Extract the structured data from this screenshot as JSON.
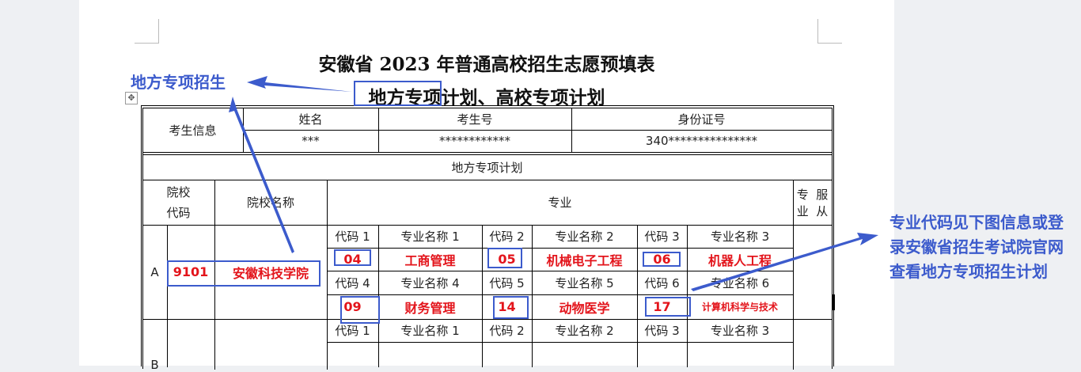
{
  "title": "安徽省 2023 年普通高校招生志愿预填表",
  "subtitle": "地方专项计划、高校专项计划",
  "student": {
    "label": "考生信息",
    "name_h": "姓名",
    "id_h": "考生号",
    "card_h": "身份证号",
    "name": "***",
    "id": "************",
    "card": "340***************"
  },
  "plan_title": "地方专项计划",
  "headers": {
    "code": "院校代码",
    "code1": "院校",
    "code2": "代码",
    "name": "院校名称",
    "major": "专业",
    "obey1": "专业",
    "obey2": "服从"
  },
  "rows": [
    {
      "letter": "A",
      "school_code": "9101",
      "school_name": "安徽科技学院",
      "labels": [
        "代码 1",
        "专业名称 1",
        "代码 2",
        "专业名称 2",
        "代码 3",
        "专业名称 3",
        "代码 4",
        "专业名称 4",
        "代码 5",
        "专业名称 5",
        "代码 6",
        "专业名称 6"
      ],
      "majors": [
        {
          "code": "04",
          "name": "工商管理"
        },
        {
          "code": "05",
          "name": "机械电子工程"
        },
        {
          "code": "06",
          "name": "机器人工程"
        },
        {
          "code": "09",
          "name": "财务管理"
        },
        {
          "code": "14",
          "name": "动物医学"
        },
        {
          "code": "17",
          "name": "计算机科学与技术"
        }
      ]
    },
    {
      "letter": "B",
      "labels": [
        "代码 1",
        "专业名称 1",
        "代码 2",
        "专业名称 2",
        "代码 3",
        "专业名称 3"
      ]
    }
  ],
  "annotations": {
    "left": "地方专项招生",
    "right": "专业代码见下图信息或登录安徽省招生考试院官网查看地方专项招生计划"
  },
  "colors": {
    "annotation": "#3c5bcc",
    "highlight": "#e3141b"
  }
}
